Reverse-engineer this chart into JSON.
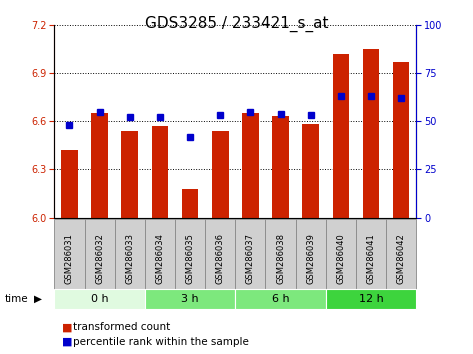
{
  "title": "GDS3285 / 233421_s_at",
  "samples": [
    "GSM286031",
    "GSM286032",
    "GSM286033",
    "GSM286034",
    "GSM286035",
    "GSM286036",
    "GSM286037",
    "GSM286038",
    "GSM286039",
    "GSM286040",
    "GSM286041",
    "GSM286042"
  ],
  "bar_values": [
    6.42,
    6.65,
    6.54,
    6.57,
    6.18,
    6.54,
    6.65,
    6.63,
    6.58,
    7.02,
    7.05,
    6.97
  ],
  "percentile_values": [
    48,
    55,
    52,
    52,
    42,
    53,
    55,
    54,
    53,
    63,
    63,
    62
  ],
  "group_labels": [
    "0 h",
    "3 h",
    "6 h",
    "12 h"
  ],
  "group_starts": [
    0,
    3,
    6,
    9
  ],
  "group_ends": [
    3,
    6,
    9,
    12
  ],
  "group_colors": [
    "#e0fae0",
    "#7de87d",
    "#7de87d",
    "#3dd43d"
  ],
  "ylim_left": [
    6.0,
    7.2
  ],
  "ylim_right": [
    0,
    100
  ],
  "yticks_left": [
    6.0,
    6.3,
    6.6,
    6.9,
    7.2
  ],
  "yticks_right": [
    0,
    25,
    50,
    75,
    100
  ],
  "bar_color": "#cc2200",
  "percentile_color": "#0000cc",
  "bar_width": 0.55,
  "title_fontsize": 11,
  "tick_fontsize": 7,
  "sample_fontsize": 6,
  "legend_fontsize": 7.5,
  "group_fontsize": 8,
  "time_fontsize": 7.5,
  "bg_color": "#ffffff",
  "gray_box_color": "#d0d0d0",
  "gray_box_edge": "#888888"
}
